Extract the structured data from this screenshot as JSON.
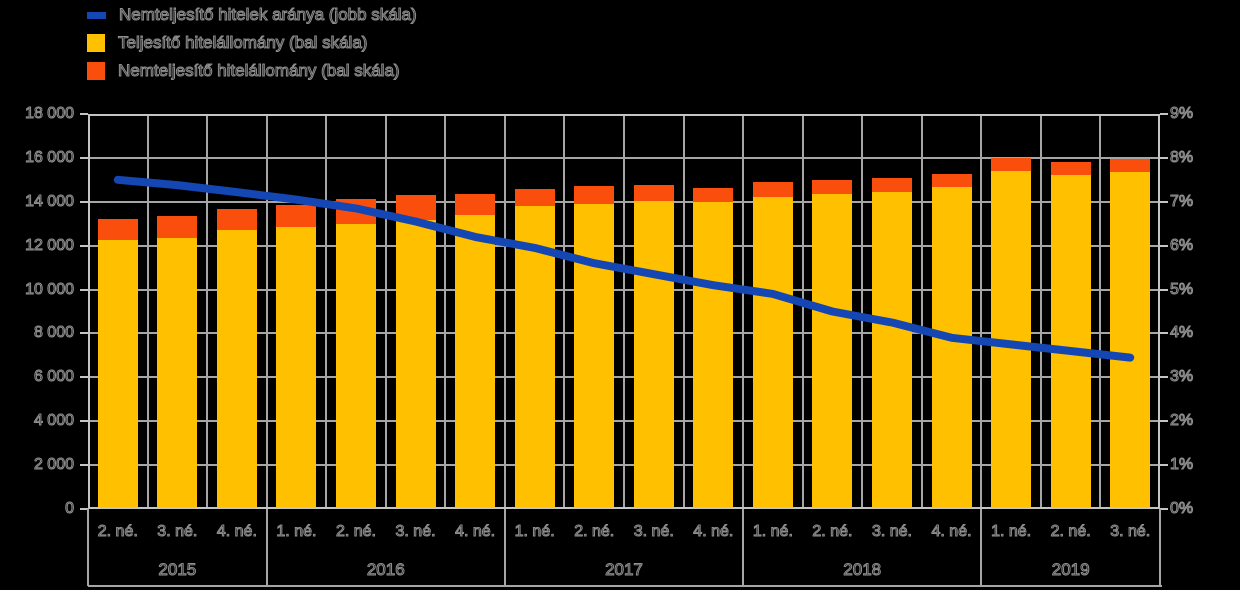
{
  "legend": {
    "items": [
      {
        "label": "Nemteljesítő hitelek aránya (jobb skála)",
        "marker": "line",
        "color": "#1446B4"
      },
      {
        "label": "Teljesítő hitelállomány (bal skála)",
        "marker": "square",
        "color": "#FFC000"
      },
      {
        "label": "Nemteljesítő hitelállomány (bal skála)",
        "marker": "square",
        "color": "#FA4E0D"
      }
    ]
  },
  "colors": {
    "background": "#000000",
    "bar_performing": "#FFC000",
    "bar_nonperforming": "#FA4E0D",
    "line_npl_ratio": "#1446B4",
    "gridline": "#A6A6A6",
    "frame": "#C4C4C4",
    "axis_text_outline": "#8F8F8F"
  },
  "chart_data": {
    "type": "bar",
    "subtype": "stacked-bars-with-line",
    "grid": true,
    "legend_position": "top-left",
    "categories": [
      "2. né.",
      "3. né.",
      "4. né.",
      "1. né.",
      "2. né.",
      "3. né.",
      "4. né.",
      "1. né.",
      "2. né.",
      "3. né.",
      "4. né.",
      "1. né.",
      "2. né.",
      "3. né.",
      "4. né.",
      "1. né.",
      "2. né.",
      "3. né."
    ],
    "year_groups": [
      {
        "label": "2015",
        "span": 3
      },
      {
        "label": "2016",
        "span": 4
      },
      {
        "label": "2017",
        "span": 4
      },
      {
        "label": "2018",
        "span": 4
      },
      {
        "label": "2019",
        "span": 3
      }
    ],
    "series": [
      {
        "name": "Teljesítő hitelállomány (bal skála)",
        "type": "bar",
        "axis": "left",
        "color": "#FFC000",
        "values": [
          12250,
          12350,
          12700,
          12850,
          13000,
          13150,
          13400,
          13800,
          13900,
          14050,
          14000,
          14230,
          14350,
          14460,
          14680,
          15400,
          15220,
          15370
        ]
      },
      {
        "name": "Nemteljesítő hitelállomány (bal skála)",
        "type": "bar",
        "axis": "left",
        "color": "#FA4E0D",
        "values": [
          950,
          1000,
          950,
          1000,
          1150,
          1150,
          950,
          800,
          800,
          700,
          650,
          670,
          640,
          610,
          580,
          580,
          580,
          560
        ]
      },
      {
        "name": "Nemteljesítő hitelek aránya (jobb skála)",
        "type": "line",
        "axis": "right",
        "color": "#1446B4",
        "values": [
          7.5,
          7.38,
          7.22,
          7.05,
          6.85,
          6.55,
          6.2,
          5.95,
          5.6,
          5.35,
          5.1,
          4.9,
          4.5,
          4.25,
          3.9,
          3.75,
          3.6,
          3.45
        ]
      }
    ],
    "left_axis": {
      "min": 0,
      "max": 18000,
      "step": 2000,
      "tick_labels": [
        "0",
        "2 000",
        "4 000",
        "6 000",
        "8 000",
        "10 000",
        "12 000",
        "14 000",
        "16 000",
        "18 000"
      ]
    },
    "right_axis": {
      "min": 0,
      "max": 9,
      "step": 1,
      "tick_labels": [
        "0%",
        "1%",
        "2%",
        "3%",
        "4%",
        "5%",
        "6%",
        "7%",
        "8%",
        "9%"
      ]
    }
  }
}
